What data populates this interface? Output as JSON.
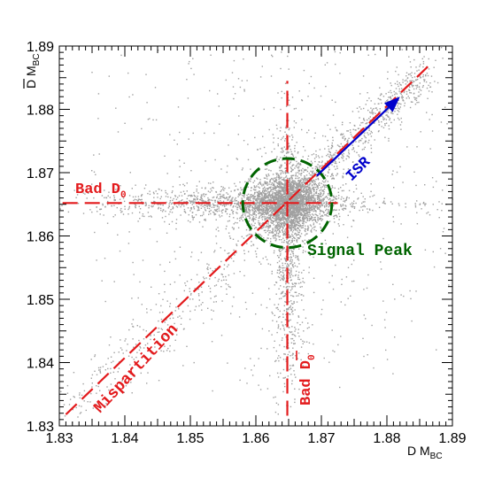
{
  "chart_data": {
    "type": "scatter",
    "title": "",
    "xlabel": "D M",
    "xlabel_sub": "BC",
    "ylabel": "D M",
    "ylabel_sub": "BC",
    "ylabel_bar": "D",
    "xlim": [
      1.83,
      1.89
    ],
    "ylim": [
      1.83,
      1.89
    ],
    "x_ticks": [
      "1.83",
      "1.84",
      "1.85",
      "1.86",
      "1.87",
      "1.88",
      "1.89"
    ],
    "y_ticks": [
      "1.83",
      "1.84",
      "1.85",
      "1.86",
      "1.87",
      "1.88",
      "1.89"
    ],
    "x_tick_values": [
      1.83,
      1.84,
      1.85,
      1.86,
      1.87,
      1.88,
      1.89
    ],
    "y_tick_values": [
      1.83,
      1.84,
      1.85,
      1.86,
      1.87,
      1.88,
      1.89
    ],
    "grid": false,
    "point_color": "#a0a0a0",
    "signal_peak": {
      "x": 1.8648,
      "y": 1.8652,
      "radius": 0.0068
    },
    "lines": [
      {
        "name": "bad-d0-line",
        "from": [
          1.8305,
          1.8652
        ],
        "to": [
          1.8725,
          1.8652
        ]
      },
      {
        "name": "bad-dbar0-line",
        "from": [
          1.8648,
          1.8316
        ],
        "to": [
          1.8648,
          1.8845
        ]
      },
      {
        "name": "mispartition-line",
        "from": [
          1.831,
          1.8318
        ],
        "to": [
          1.8865,
          1.887
        ]
      }
    ],
    "isr_arrow": {
      "from": [
        1.8693,
        1.8695
      ],
      "to": [
        1.882,
        1.882
      ]
    },
    "annotations": {
      "bad_d0": "Bad D",
      "bad_d0_sub": "0",
      "bad_dbar0": "Bad D",
      "bad_dbar0_sub": "0",
      "mispartition": "Mispartition",
      "signal_peak": "Signal Peak",
      "isr": "ISR"
    },
    "colors": {
      "line": "#e31a1c",
      "signal": "#006400",
      "isr": "#0000cc"
    }
  }
}
